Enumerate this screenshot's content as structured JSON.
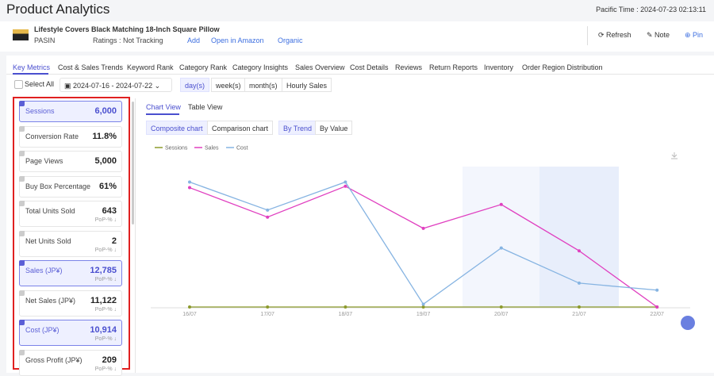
{
  "header": {
    "title": "Product Analytics",
    "time": "Pacific Time : 2024-07-23 02:13:11"
  },
  "product": {
    "title": "Lifestyle Covers Black Matching 18-Inch Square Pillow",
    "pasin": "PASIN",
    "ratings": "Ratings : Not Tracking",
    "add": "Add",
    "open": "Open in Amazon",
    "organic": "Organic",
    "actions": [
      "Refresh",
      "Note",
      "Pin"
    ]
  },
  "tabs": [
    "Key Metrics",
    "Cost & Sales Trends",
    "Keyword Rank",
    "Category Rank",
    "Category Insights",
    "Sales Overview",
    "Cost Details",
    "Reviews",
    "Return Reports",
    "Inventory",
    "Order Region Distribution"
  ],
  "filters": {
    "select_all": "Select All",
    "date_range": "2024-07-16 - 2024-07-22",
    "granularity": [
      "day(s)",
      "week(s)",
      "month(s)"
    ],
    "hourly": "Hourly Sales"
  },
  "metrics": [
    {
      "name": "Sessions",
      "value": "6,000",
      "selected": true
    },
    {
      "name": "Conversion Rate",
      "value": "11.8%",
      "selected": false
    },
    {
      "name": "Page Views",
      "value": "5,000",
      "selected": false
    },
    {
      "name": "Buy Box Percentage",
      "value": "61%",
      "selected": false
    },
    {
      "name": "Total Units Sold",
      "value": "643",
      "pop": "PoP-% ↓",
      "selected": false
    },
    {
      "name": "Net Units Sold",
      "value": "2",
      "pop": "PoP-% ↓",
      "selected": false
    },
    {
      "name": "Sales (JP¥)",
      "value": "12,785",
      "pop": "PoP-% ↓",
      "selected": true
    },
    {
      "name": "Net Sales (JP¥)",
      "value": "11,122",
      "pop": "PoP-% ↓",
      "selected": false
    },
    {
      "name": "Cost (JP¥)",
      "value": "10,914",
      "pop": "PoP-% ↓",
      "selected": true
    },
    {
      "name": "Gross Profit (JP¥)",
      "value": "209",
      "pop": "PoP-% ↓",
      "selected": false
    }
  ],
  "views": [
    "Chart View",
    "Table View"
  ],
  "chart_modes": [
    "Composite chart",
    "Comparison chart"
  ],
  "trend_modes": [
    "By Trend",
    "By Value"
  ],
  "chart_data": {
    "type": "line",
    "categories": [
      "16/07",
      "17/07",
      "18/07",
      "19/07",
      "20/07",
      "21/07",
      "22/07"
    ],
    "ylim": [
      0,
      100
    ],
    "series": [
      {
        "name": "Sessions",
        "color": "#8c9a2c",
        "values": [
          0,
          0,
          0,
          0,
          0,
          0,
          0
        ]
      },
      {
        "name": "Sales",
        "color": "#e040c0",
        "values": [
          85,
          64,
          86,
          56,
          73,
          40,
          0
        ]
      },
      {
        "name": "Cost",
        "color": "#86b4e2",
        "values": [
          89,
          69,
          89,
          2,
          42,
          17,
          12
        ]
      }
    ]
  }
}
